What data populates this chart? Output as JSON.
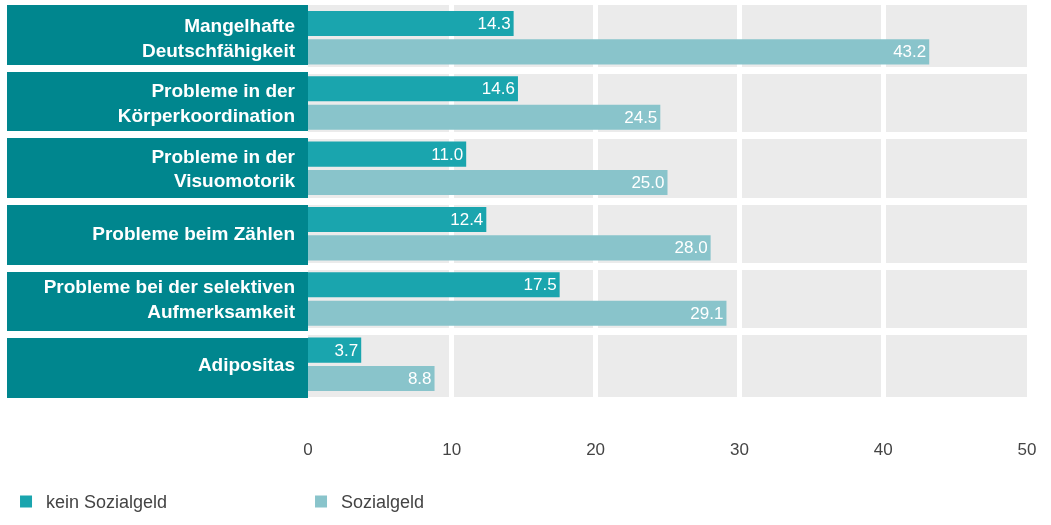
{
  "chart_data": {
    "type": "bar",
    "orientation": "horizontal",
    "categories": [
      "Mangelhafte Deutschfähigkeit",
      "Probleme in der Körperkoordination",
      "Probleme in der Visuomotorik",
      "Probleme beim Zählen",
      "Probleme bei der selektiven Aufmerksamkeit",
      "Adipositas"
    ],
    "series": [
      {
        "name": "kein Sozialgeld",
        "color": "#1aa5ae",
        "values": [
          14.3,
          14.6,
          11.0,
          12.4,
          17.5,
          3.7
        ],
        "value_labels": [
          "14.3",
          "14.6",
          "11.0",
          "12.4",
          "17.5",
          "3.7"
        ]
      },
      {
        "name": "Sozialgeld",
        "color": "#89c4cb",
        "values": [
          43.2,
          24.5,
          25.0,
          28.0,
          29.1,
          8.8
        ],
        "value_labels": [
          "43.2",
          "24.5",
          "25.0",
          "28.0",
          "29.1",
          "8.8"
        ]
      }
    ],
    "xlim": [
      0,
      50
    ],
    "xticks": [
      0,
      10,
      20,
      30,
      40,
      50
    ],
    "grid": "x",
    "legend": "bottom left"
  }
}
